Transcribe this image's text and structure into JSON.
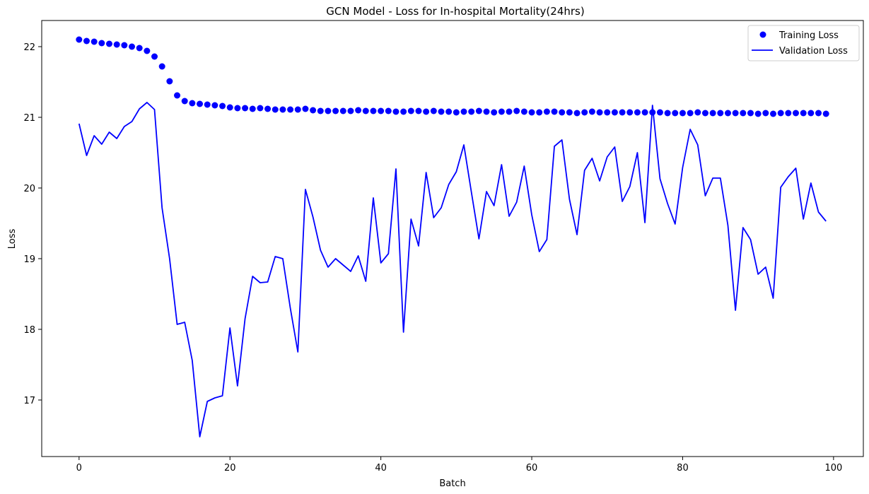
{
  "chart_data": {
    "type": "line",
    "title": "GCN Model - Loss for In-hospital Mortality(24hrs)",
    "xlabel": "Batch",
    "ylabel": "Loss",
    "xlim": [
      -4.95,
      103.95
    ],
    "ylim": [
      16.2,
      22.37
    ],
    "xticks": [
      0,
      20,
      40,
      60,
      80,
      100
    ],
    "yticks": [
      17,
      18,
      19,
      20,
      21,
      22
    ],
    "grid": false,
    "legend_position": "upper right",
    "colors": {
      "series": "#0000ff"
    },
    "series": [
      {
        "name": "Training Loss",
        "style": "markers",
        "x": [
          0,
          1,
          2,
          3,
          4,
          5,
          6,
          7,
          8,
          9,
          10,
          11,
          12,
          13,
          14,
          15,
          16,
          17,
          18,
          19,
          20,
          21,
          22,
          23,
          24,
          25,
          26,
          27,
          28,
          29,
          30,
          31,
          32,
          33,
          34,
          35,
          36,
          37,
          38,
          39,
          40,
          41,
          42,
          43,
          44,
          45,
          46,
          47,
          48,
          49,
          50,
          51,
          52,
          53,
          54,
          55,
          56,
          57,
          58,
          59,
          60,
          61,
          62,
          63,
          64,
          65,
          66,
          67,
          68,
          69,
          70,
          71,
          72,
          73,
          74,
          75,
          76,
          77,
          78,
          79,
          80,
          81,
          82,
          83,
          84,
          85,
          86,
          87,
          88,
          89,
          90,
          91,
          92,
          93,
          94,
          95,
          96,
          97,
          98,
          99
        ],
        "values": [
          22.1,
          22.08,
          22.07,
          22.05,
          22.04,
          22.03,
          22.02,
          22.0,
          21.98,
          21.94,
          21.86,
          21.72,
          21.51,
          21.31,
          21.23,
          21.2,
          21.19,
          21.18,
          21.17,
          21.16,
          21.14,
          21.13,
          21.13,
          21.12,
          21.13,
          21.12,
          21.11,
          21.11,
          21.11,
          21.11,
          21.12,
          21.1,
          21.09,
          21.09,
          21.09,
          21.09,
          21.09,
          21.1,
          21.09,
          21.09,
          21.09,
          21.09,
          21.08,
          21.08,
          21.09,
          21.09,
          21.08,
          21.09,
          21.08,
          21.08,
          21.07,
          21.08,
          21.08,
          21.09,
          21.08,
          21.07,
          21.08,
          21.08,
          21.09,
          21.08,
          21.07,
          21.07,
          21.08,
          21.08,
          21.07,
          21.07,
          21.06,
          21.07,
          21.08,
          21.07,
          21.07,
          21.07,
          21.07,
          21.07,
          21.07,
          21.07,
          21.07,
          21.07,
          21.06,
          21.06,
          21.06,
          21.06,
          21.07,
          21.06,
          21.06,
          21.06,
          21.06,
          21.06,
          21.06,
          21.06,
          21.05,
          21.06,
          21.05,
          21.06,
          21.06,
          21.06,
          21.06,
          21.06,
          21.06,
          21.05
        ]
      },
      {
        "name": "Validation Loss",
        "style": "line",
        "x": [
          0,
          1,
          2,
          3,
          4,
          5,
          6,
          7,
          8,
          9,
          10,
          11,
          12,
          13,
          14,
          15,
          16,
          17,
          18,
          19,
          20,
          21,
          22,
          23,
          24,
          25,
          26,
          27,
          28,
          29,
          30,
          31,
          32,
          33,
          34,
          35,
          36,
          37,
          38,
          39,
          40,
          41,
          42,
          43,
          44,
          45,
          46,
          47,
          48,
          49,
          50,
          51,
          52,
          53,
          54,
          55,
          56,
          57,
          58,
          59,
          60,
          61,
          62,
          63,
          64,
          65,
          66,
          67,
          68,
          69,
          70,
          71,
          72,
          73,
          74,
          75,
          76,
          77,
          78,
          79,
          80,
          81,
          82,
          83,
          84,
          85,
          86,
          87,
          88,
          89,
          90,
          91,
          92,
          93,
          94,
          95,
          96,
          97,
          98,
          99
        ],
        "values": [
          20.91,
          20.46,
          20.74,
          20.62,
          20.79,
          20.7,
          20.87,
          20.94,
          21.12,
          21.21,
          21.11,
          19.72,
          19.0,
          18.07,
          18.1,
          17.56,
          16.48,
          16.98,
          17.03,
          17.06,
          18.02,
          17.2,
          18.15,
          18.75,
          18.66,
          18.67,
          19.03,
          19.0,
          18.3,
          17.68,
          19.98,
          19.59,
          19.12,
          18.88,
          19.0,
          18.91,
          18.82,
          19.04,
          18.68,
          19.86,
          18.94,
          19.07,
          20.27,
          17.96,
          19.56,
          19.18,
          20.22,
          19.58,
          19.72,
          20.05,
          20.23,
          20.61,
          19.94,
          19.28,
          19.95,
          19.75,
          20.33,
          19.6,
          19.8,
          20.31,
          19.62,
          19.1,
          19.27,
          20.59,
          20.68,
          19.84,
          19.34,
          20.25,
          20.42,
          20.1,
          20.44,
          20.58,
          19.81,
          20.02,
          20.5,
          19.51,
          21.17,
          20.13,
          19.78,
          19.49,
          20.29,
          20.83,
          20.61,
          19.89,
          20.14,
          20.14,
          19.47,
          18.27,
          19.44,
          19.27,
          18.78,
          18.88,
          18.44,
          20.01,
          20.16,
          20.28,
          19.56,
          20.07,
          19.66,
          19.53
        ]
      }
    ]
  }
}
